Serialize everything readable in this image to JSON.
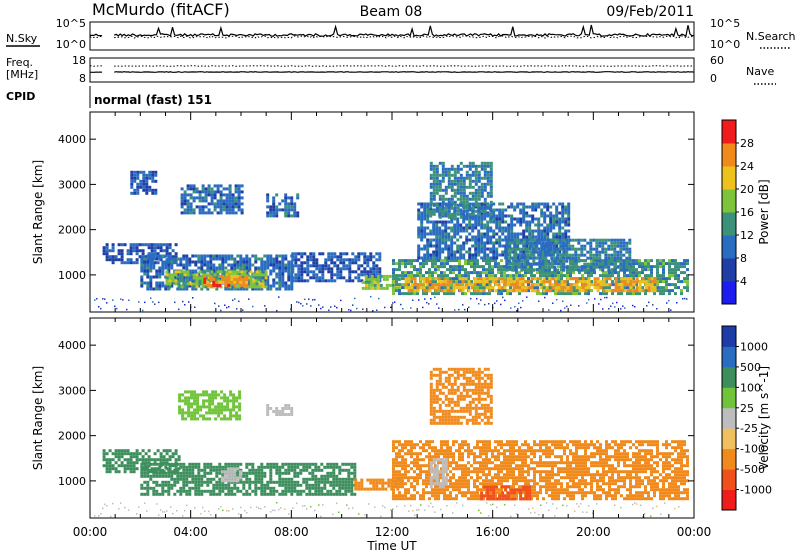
{
  "header": {
    "station": "McMurdo (fitACF)",
    "beam": "Beam 08",
    "date": "09/Feb/2011"
  },
  "status_panels": {
    "noise": {
      "left_label": "N.Sky",
      "right_label": "N.Search",
      "left_ticks": [
        "10^5",
        "10^0"
      ],
      "right_ticks": [
        "10^5",
        "10^0"
      ]
    },
    "freq": {
      "left_label_1": "Freq.",
      "left_label_2": "[MHz]",
      "left_ticks": [
        "18",
        "8"
      ],
      "right_label": "Nave",
      "right_ticks": [
        "60",
        "0"
      ]
    },
    "cpid": {
      "label": "CPID",
      "value": "normal (fast) 151"
    }
  },
  "chart_data": [
    {
      "type": "heatmap",
      "panel": "power",
      "ylabel": "Slant Range [km]",
      "xlabel": "",
      "x_ticks": [
        "00:00",
        "04:00",
        "08:00",
        "12:00",
        "16:00",
        "20:00",
        "00:00"
      ],
      "x_tick_hours": [
        0,
        4,
        8,
        12,
        16,
        20,
        24
      ],
      "ylim": [
        180,
        4600
      ],
      "y_ticks": [
        1000,
        2000,
        3000,
        4000
      ],
      "colorbar": {
        "label": "Power [dB]",
        "ticks": [
          "28",
          "24",
          "20",
          "16",
          "12",
          "8",
          "4"
        ],
        "levels": [
          {
            "max": 4,
            "color": "#1c1cf0"
          },
          {
            "max": 8,
            "color": "#1f3ea6"
          },
          {
            "max": 12,
            "color": "#2a6dc0"
          },
          {
            "max": 16,
            "color": "#3c9278"
          },
          {
            "max": 20,
            "color": "#7ec43a"
          },
          {
            "max": 24,
            "color": "#eec21c"
          },
          {
            "max": 28,
            "color": "#f08a1c"
          },
          {
            "max": 32,
            "color": "#f01c1c"
          }
        ]
      },
      "echo_regions": [
        {
          "t0": 0.5,
          "t1": 3.4,
          "r0": 1300,
          "r1": 1700,
          "value": 8
        },
        {
          "t0": 1.6,
          "t1": 2.6,
          "r0": 2800,
          "r1": 3300,
          "value": 8
        },
        {
          "t0": 2.0,
          "t1": 8.0,
          "r0": 700,
          "r1": 1450,
          "value": 10
        },
        {
          "t0": 3.0,
          "t1": 7.0,
          "r0": 750,
          "r1": 1100,
          "value": 18
        },
        {
          "t0": 3.6,
          "t1": 6.0,
          "r0": 2400,
          "r1": 3000,
          "value": 10
        },
        {
          "t0": 4.5,
          "t1": 6.2,
          "r0": 800,
          "r1": 1000,
          "value": 26
        },
        {
          "t0": 7.0,
          "t1": 8.3,
          "r0": 2300,
          "r1": 2800,
          "value": 10
        },
        {
          "t0": 8.0,
          "t1": 11.5,
          "r0": 900,
          "r1": 1500,
          "value": 8
        },
        {
          "t0": 10.8,
          "t1": 12.3,
          "r0": 700,
          "r1": 1000,
          "value": 18
        },
        {
          "t0": 12.0,
          "t1": 23.8,
          "r0": 600,
          "r1": 1350,
          "value": 14
        },
        {
          "t0": 12.5,
          "t1": 22.5,
          "r0": 650,
          "r1": 950,
          "value": 24
        },
        {
          "t0": 13.0,
          "t1": 19.0,
          "r0": 1400,
          "r1": 2600,
          "value": 10
        },
        {
          "t0": 13.5,
          "t1": 16.0,
          "r0": 2300,
          "r1": 3500,
          "value": 12
        },
        {
          "t0": 16.5,
          "t1": 21.5,
          "r0": 1100,
          "r1": 1800,
          "value": 12
        }
      ]
    },
    {
      "type": "heatmap",
      "panel": "velocity",
      "ylabel": "Slant Range [km]",
      "xlabel": "Time UT",
      "x_ticks": [
        "00:00",
        "04:00",
        "08:00",
        "12:00",
        "16:00",
        "20:00",
        "00:00"
      ],
      "x_tick_hours": [
        0,
        4,
        8,
        12,
        16,
        20,
        24
      ],
      "ylim": [
        180,
        4600
      ],
      "y_ticks": [
        1000,
        2000,
        3000,
        4000
      ],
      "colorbar": {
        "label": "Velocity [m s^-1]",
        "ticks": [
          "1000",
          "500",
          "100",
          "25",
          "-25",
          "-100",
          "-500",
          "-1000"
        ],
        "levels": [
          {
            "max": -1000,
            "color": "#f01c1c"
          },
          {
            "max": -500,
            "color": "#f0501c"
          },
          {
            "max": -100,
            "color": "#f08a1c"
          },
          {
            "max": -25,
            "color": "#f0c060"
          },
          {
            "max": 25,
            "color": "#bdbdbd"
          },
          {
            "max": 100,
            "color": "#6fc43a"
          },
          {
            "max": 500,
            "color": "#3c8f5c"
          },
          {
            "max": 1000,
            "color": "#2a6dc0"
          },
          {
            "max": 2000,
            "color": "#1c3ca8"
          }
        ]
      },
      "echo_regions": [
        {
          "t0": 0.5,
          "t1": 3.5,
          "r0": 1200,
          "r1": 1700,
          "value": 300
        },
        {
          "t0": 2.0,
          "t1": 10.5,
          "r0": 700,
          "r1": 1400,
          "value": 300
        },
        {
          "t0": 3.5,
          "t1": 6.0,
          "r0": 2400,
          "r1": 3000,
          "value": 60
        },
        {
          "t0": 5.2,
          "t1": 6.0,
          "r0": 1000,
          "r1": 1300,
          "value": 0
        },
        {
          "t0": 7.0,
          "t1": 8.0,
          "r0": 2500,
          "r1": 2700,
          "value": 0
        },
        {
          "t0": 10.5,
          "t1": 12.3,
          "r0": 800,
          "r1": 1050,
          "value": -300
        },
        {
          "t0": 12.0,
          "t1": 23.8,
          "r0": 600,
          "r1": 1900,
          "value": -200
        },
        {
          "t0": 13.5,
          "t1": 14.2,
          "r0": 900,
          "r1": 1500,
          "value": 0
        },
        {
          "t0": 13.5,
          "t1": 16.0,
          "r0": 2300,
          "r1": 3500,
          "value": -200
        },
        {
          "t0": 15.5,
          "t1": 17.5,
          "r0": 600,
          "r1": 900,
          "value": -700
        }
      ]
    }
  ]
}
